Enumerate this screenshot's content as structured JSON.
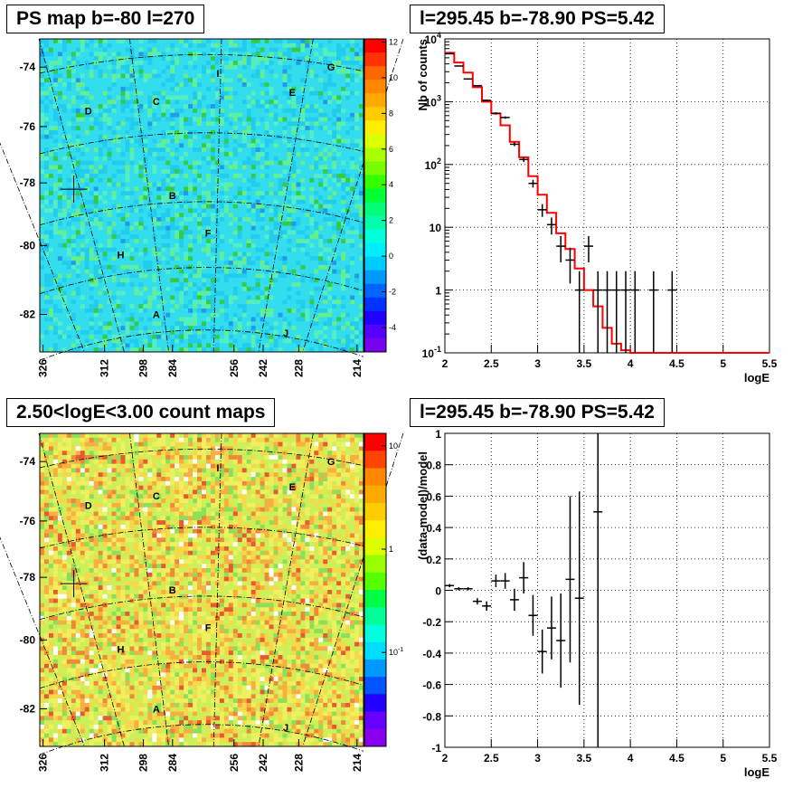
{
  "panels": {
    "ps_map_title": "PS map b=-80 l=270",
    "count_map_title": "2.50<logE<3.00 count maps",
    "spectrum_title": "l=295.45 b=-78.90 PS=5.42",
    "residual_title": "l=295.45 b=-78.90 PS=5.42"
  },
  "map_axes": {
    "y_ticks": [
      "-74",
      "-76",
      "-78",
      "-80",
      "-82"
    ],
    "x_ticks": [
      "326",
      "312",
      "298",
      "284",
      "256",
      "242",
      "228",
      "214"
    ],
    "regions": [
      "A",
      "B",
      "C",
      "D",
      "E",
      "F",
      "G",
      "H",
      "I",
      "J"
    ]
  },
  "colors": {
    "spectrum_model": "#ff0000",
    "data": "#000000"
  },
  "chart_data": [
    {
      "type": "heatmap",
      "title": "PS map b=-80 l=270",
      "ylabel_ticks": [
        -74,
        -76,
        -78,
        -80,
        -82
      ],
      "xlabel_ticks": [
        326,
        312,
        298,
        284,
        256,
        242,
        228,
        214
      ],
      "colorbar": {
        "min": -5,
        "max": 12,
        "ticks": [
          "12",
          "10",
          "8",
          "6",
          "4",
          "2",
          "0",
          "-2",
          "-4"
        ]
      },
      "marker": "cross at l=295.45 b=-78.90"
    },
    {
      "type": "scatter",
      "title": "l=295.45 b=-78.90 PS=5.42",
      "xlabel": "logE",
      "ylabel": "Nb of counts",
      "xlim": [
        2,
        5.5
      ],
      "ylim": [
        0.1,
        10000
      ],
      "log_y": true,
      "grid": true,
      "x_ticks": [
        "2",
        "2.5",
        "3",
        "3.5",
        "4",
        "4.5",
        "5",
        "5.5"
      ],
      "y_ticks": [
        "10^4",
        "10^3",
        "10^2",
        "10",
        "1",
        "10^-1"
      ],
      "data": {
        "x": [
          2.05,
          2.15,
          2.25,
          2.35,
          2.45,
          2.55,
          2.65,
          2.75,
          2.85,
          2.95,
          3.05,
          3.15,
          3.25,
          3.35,
          3.45,
          3.55,
          3.65,
          3.75,
          3.85,
          3.95,
          4.05,
          4.25,
          4.45
        ],
        "y": [
          5800,
          3700,
          2300,
          1800,
          1050,
          650,
          560,
          210,
          120,
          50,
          19,
          11,
          5,
          3,
          1,
          5,
          1,
          1,
          1,
          1,
          1,
          1,
          1
        ]
      },
      "model": {
        "x": [
          2.0,
          2.1,
          2.2,
          2.3,
          2.4,
          2.5,
          2.6,
          2.7,
          2.8,
          2.9,
          3.0,
          3.1,
          3.2,
          3.3,
          3.4,
          3.5,
          3.6,
          3.7,
          3.8,
          3.9,
          4.0,
          5.5
        ],
        "y": [
          6000,
          4200,
          2900,
          1700,
          1000,
          650,
          420,
          230,
          130,
          65,
          33,
          17,
          8,
          4.5,
          2.2,
          1.0,
          0.55,
          0.25,
          0.14,
          0.11,
          0.1,
          0.1
        ]
      }
    },
    {
      "type": "heatmap",
      "title": "2.50<logE<3.00 count maps",
      "ylabel_ticks": [
        -74,
        -76,
        -78,
        -80,
        -82
      ],
      "xlabel_ticks": [
        326,
        312,
        298,
        284,
        256,
        242,
        228,
        214
      ],
      "colorbar": {
        "log": true,
        "ticks": [
          "10",
          "1",
          "10^-1"
        ]
      },
      "marker": "cross at l=295.45 b=-78.90"
    },
    {
      "type": "scatter",
      "title": "l=295.45 b=-78.90 PS=5.42",
      "xlabel": "logE",
      "ylabel": "(data-model)/model",
      "xlim": [
        2,
        5.5
      ],
      "ylim": [
        -1,
        1
      ],
      "grid": true,
      "x_ticks": [
        "2",
        "2.5",
        "3",
        "3.5",
        "4",
        "4.5",
        "5",
        "5.5"
      ],
      "y_ticks": [
        "1",
        "0.8",
        "0.6",
        "0.4",
        "0.2",
        "0",
        "-0.2",
        "-0.4",
        "-0.6",
        "-0.8",
        "-1"
      ],
      "data": {
        "x": [
          2.05,
          2.15,
          2.25,
          2.35,
          2.45,
          2.55,
          2.65,
          2.75,
          2.85,
          2.95,
          3.05,
          3.15,
          3.25,
          3.35,
          3.45,
          3.65
        ],
        "y": [
          0.03,
          0.01,
          0.01,
          -0.07,
          -0.1,
          0.06,
          0.06,
          -0.06,
          0.08,
          -0.16,
          -0.39,
          -0.24,
          -0.32,
          0.07,
          -0.05,
          0.5
        ],
        "err": [
          0.01,
          0.01,
          0.01,
          0.02,
          0.03,
          0.04,
          0.05,
          0.07,
          0.1,
          0.13,
          0.14,
          0.2,
          0.3,
          0.53,
          0.68,
          1.6
        ]
      }
    }
  ]
}
